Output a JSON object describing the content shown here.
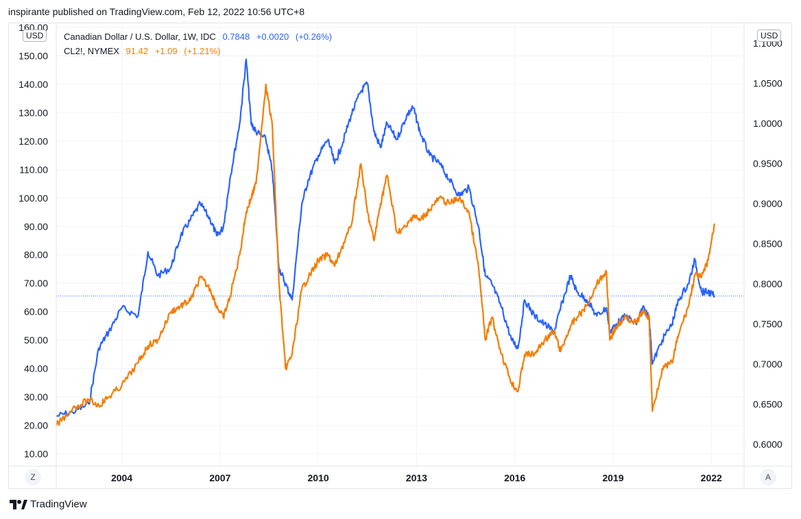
{
  "header": {
    "published": "inspirante published on TradingView.com, Feb 12, 2022 10:56 UTC+8"
  },
  "legend": {
    "series1": {
      "name": "Canadian Dollar / U.S. Dollar, 1W, IDC",
      "price": "0.7848",
      "change": "+0.0020",
      "pct": "(+0.26%)",
      "color": "#2962ff"
    },
    "series2": {
      "name": "CL2!, NYMEX",
      "price": "91.42",
      "change": "+1.09",
      "pct": "(+1.21%)",
      "color": "#f57c00"
    }
  },
  "currency_left": "USD",
  "currency_right": "USD",
  "buttons": {
    "left": "Z",
    "right": "A"
  },
  "footer": {
    "brand": "TradingView"
  },
  "colors": {
    "blue": "#2962ff",
    "orange": "#f57c00",
    "grid": "#f0f3fa"
  },
  "chart_data": {
    "type": "line",
    "left_axis": {
      "label": "USD",
      "ticks": [
        "10.00",
        "20.00",
        "30.00",
        "40.00",
        "50.00",
        "60.00",
        "70.00",
        "80.00",
        "90.00",
        "100.00",
        "110.00",
        "120.00",
        "130.00",
        "140.00",
        "150.00",
        "160.00"
      ],
      "range": [
        10,
        160
      ]
    },
    "right_axis": {
      "label": "USD",
      "ticks": [
        "0.6000",
        "0.6500",
        "0.7000",
        "0.7500",
        "0.8000",
        "0.8500",
        "0.9000",
        "0.9500",
        "1.0000",
        "1.0500",
        "1.1000"
      ],
      "range": [
        0.6,
        1.1
      ]
    },
    "x_ticks": [
      "2004",
      "2007",
      "2010",
      "2013",
      "2016",
      "2019",
      "2022"
    ],
    "x_range": [
      2002.0,
      2023.0
    ],
    "last_price_line": 0.7848,
    "series": [
      {
        "name": "Canadian Dollar / U.S. Dollar, 1W, IDC",
        "axis": "right",
        "color": "#2962ff",
        "x": [
          2002.0,
          2002.5,
          2003.0,
          2003.3,
          2003.6,
          2004.0,
          2004.5,
          2004.8,
          2005.1,
          2005.5,
          2005.8,
          2006.1,
          2006.4,
          2006.7,
          2006.9,
          2007.1,
          2007.3,
          2007.6,
          2007.8,
          2007.95,
          2008.1,
          2008.4,
          2008.6,
          2008.8,
          2009.0,
          2009.2,
          2009.5,
          2009.7,
          2010.0,
          2010.3,
          2010.5,
          2010.7,
          2011.0,
          2011.3,
          2011.5,
          2011.7,
          2011.9,
          2012.1,
          2012.4,
          2012.7,
          2012.9,
          2013.1,
          2013.4,
          2013.7,
          2014.0,
          2014.3,
          2014.6,
          2014.9,
          2015.1,
          2015.3,
          2015.6,
          2015.9,
          2016.1,
          2016.3,
          2016.6,
          2016.9,
          2017.2,
          2017.4,
          2017.7,
          2017.9,
          2018.2,
          2018.5,
          2018.8,
          2018.9,
          2019.1,
          2019.4,
          2019.7,
          2019.9,
          2020.1,
          2020.2,
          2020.5,
          2020.8,
          2021.0,
          2021.3,
          2021.5,
          2021.7,
          2021.9,
          2022.1
        ],
        "y": [
          0.635,
          0.64,
          0.65,
          0.72,
          0.74,
          0.77,
          0.76,
          0.84,
          0.81,
          0.82,
          0.86,
          0.88,
          0.9,
          0.88,
          0.86,
          0.87,
          0.93,
          1.0,
          1.08,
          1.0,
          0.99,
          0.98,
          0.94,
          0.82,
          0.8,
          0.78,
          0.9,
          0.93,
          0.96,
          0.98,
          0.95,
          0.97,
          1.01,
          1.04,
          1.05,
          0.99,
          0.97,
          1.0,
          0.98,
          1.01,
          1.02,
          0.99,
          0.96,
          0.95,
          0.93,
          0.91,
          0.92,
          0.87,
          0.81,
          0.8,
          0.77,
          0.73,
          0.72,
          0.78,
          0.76,
          0.75,
          0.74,
          0.77,
          0.81,
          0.79,
          0.78,
          0.76,
          0.77,
          0.74,
          0.75,
          0.76,
          0.75,
          0.77,
          0.76,
          0.7,
          0.73,
          0.75,
          0.78,
          0.8,
          0.83,
          0.79,
          0.79,
          0.785
        ]
      },
      {
        "name": "CL2!, NYMEX",
        "axis": "left",
        "color": "#f57c00",
        "x": [
          2002.0,
          2002.5,
          2003.0,
          2003.3,
          2003.6,
          2004.0,
          2004.5,
          2004.8,
          2005.1,
          2005.5,
          2005.8,
          2006.1,
          2006.4,
          2006.7,
          2006.9,
          2007.1,
          2007.3,
          2007.6,
          2007.8,
          2007.95,
          2008.1,
          2008.4,
          2008.6,
          2008.8,
          2009.0,
          2009.2,
          2009.5,
          2009.7,
          2010.0,
          2010.3,
          2010.5,
          2010.7,
          2011.0,
          2011.3,
          2011.5,
          2011.7,
          2011.9,
          2012.1,
          2012.4,
          2012.7,
          2012.9,
          2013.1,
          2013.4,
          2013.7,
          2014.0,
          2014.3,
          2014.6,
          2014.9,
          2015.1,
          2015.3,
          2015.6,
          2015.9,
          2016.1,
          2016.3,
          2016.6,
          2016.9,
          2017.2,
          2017.4,
          2017.7,
          2017.9,
          2018.2,
          2018.5,
          2018.8,
          2018.9,
          2019.1,
          2019.4,
          2019.7,
          2019.9,
          2020.1,
          2020.2,
          2020.5,
          2020.8,
          2021.0,
          2021.3,
          2021.5,
          2021.7,
          2021.9,
          2022.1
        ],
        "y": [
          20,
          26,
          29,
          27,
          30,
          34,
          42,
          48,
          50,
          60,
          62,
          64,
          72,
          68,
          62,
          58,
          65,
          80,
          95,
          100,
          105,
          140,
          125,
          70,
          40,
          45,
          68,
          72,
          78,
          80,
          76,
          82,
          90,
          112,
          95,
          85,
          98,
          108,
          88,
          90,
          94,
          92,
          96,
          100,
          98,
          100,
          95,
          75,
          50,
          58,
          45,
          35,
          32,
          45,
          45,
          50,
          53,
          46,
          55,
          58,
          62,
          70,
          74,
          50,
          55,
          58,
          56,
          60,
          58,
          25,
          40,
          42,
          52,
          62,
          73,
          72,
          78,
          91
        ]
      }
    ]
  }
}
